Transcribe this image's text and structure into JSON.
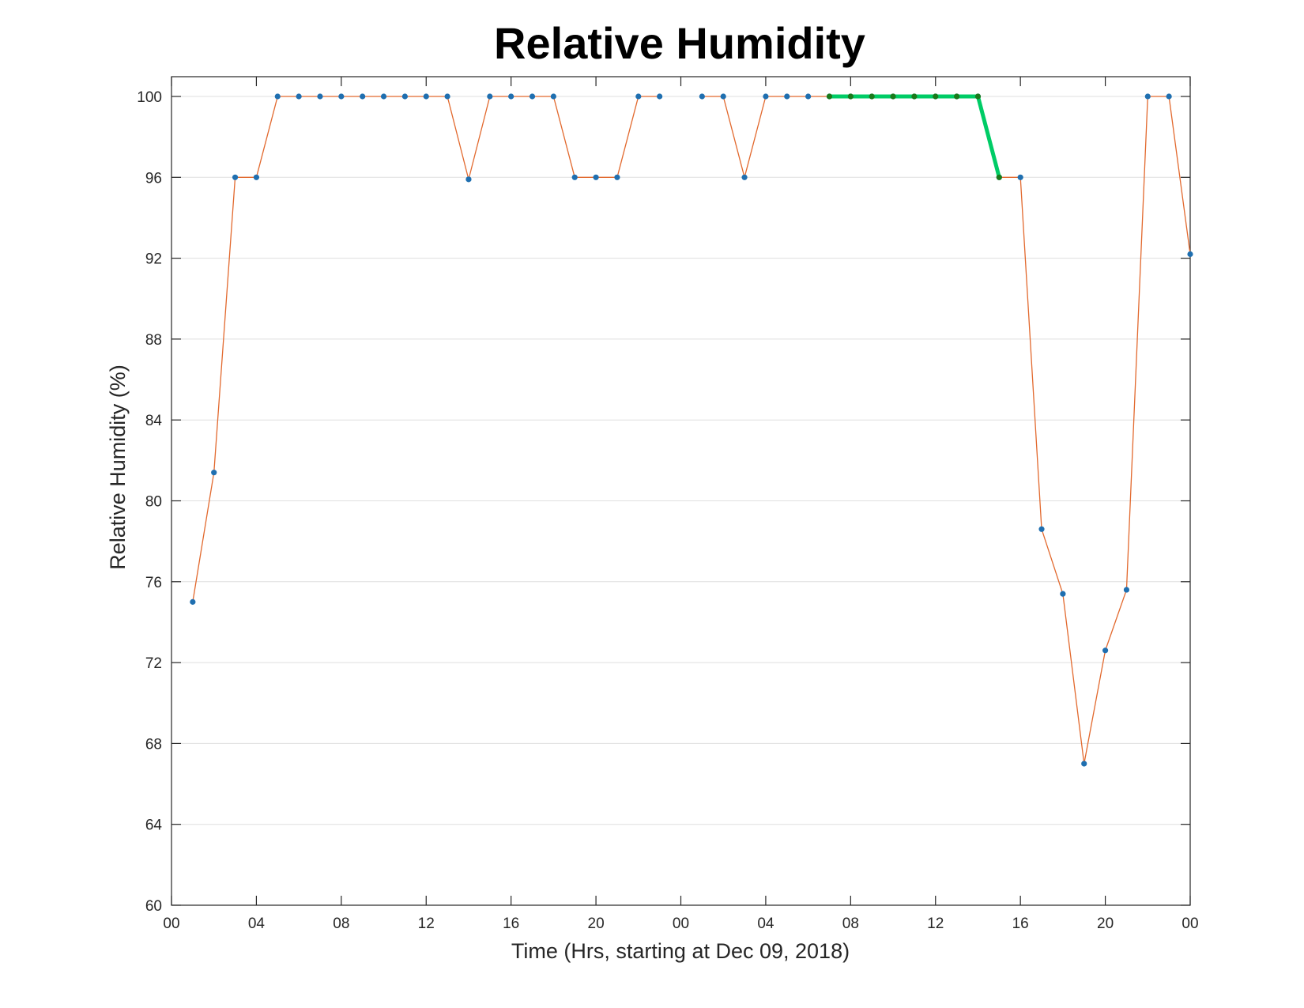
{
  "chart_data": {
    "type": "line",
    "title": "Relative Humidity",
    "xlabel": "Time (Hrs, starting at Dec 09, 2018)",
    "ylabel": "Relative Humidity (%)",
    "ylim": [
      60,
      100
    ],
    "xlim": [
      "Dec 09, 2018 00:00",
      "Dec 11, 2018 00:00"
    ],
    "x_tick_labels": [
      "00",
      "04",
      "08",
      "12",
      "16",
      "20",
      "00",
      "04",
      "08",
      "12",
      "16",
      "20",
      "00"
    ],
    "y_ticks": [
      60,
      64,
      68,
      72,
      76,
      80,
      84,
      88,
      92,
      96,
      100
    ],
    "grid": "horizontal",
    "series": [
      {
        "color": "#e2692e",
        "marker_color": "#1f6fb0",
        "x": [
          "Dec 09 01:00",
          "Dec 09 02:00",
          "Dec 09 03:00",
          "Dec 09 04:00",
          "Dec 09 05:00",
          "Dec 09 06:00",
          "Dec 09 07:00",
          "Dec 09 08:00",
          "Dec 09 09:00",
          "Dec 09 10:00",
          "Dec 09 11:00",
          "Dec 09 12:00",
          "Dec 09 13:00",
          "Dec 09 14:00",
          "Dec 09 15:00",
          "Dec 09 16:00",
          "Dec 09 17:00",
          "Dec 09 18:00",
          "Dec 09 19:00",
          "Dec 09 20:00",
          "Dec 09 21:00",
          "Dec 09 22:00",
          "Dec 09 23:00",
          "Dec 10 00:00",
          "Dec 10 01:00",
          "Dec 10 02:00",
          "Dec 10 03:00",
          "Dec 10 04:00",
          "Dec 10 05:00",
          "Dec 10 06:00",
          "Dec 10 07:00",
          "Dec 10 08:00",
          "Dec 10 09:00",
          "Dec 10 10:00",
          "Dec 10 11:00",
          "Dec 10 12:00",
          "Dec 10 13:00",
          "Dec 10 14:00",
          "Dec 10 15:00",
          "Dec 10 16:00",
          "Dec 10 17:00",
          "Dec 10 18:00",
          "Dec 10 19:00",
          "Dec 10 20:00",
          "Dec 10 21:00",
          "Dec 10 22:00",
          "Dec 10 23:00",
          "Dec 11 00:00"
        ],
        "values": [
          75,
          81.4,
          96,
          96,
          100,
          100,
          100,
          100,
          100,
          100,
          100,
          100,
          100,
          95.9,
          100,
          100,
          100,
          100,
          96,
          96,
          96,
          100,
          100,
          null,
          100,
          100,
          96,
          100,
          100,
          100,
          100,
          100,
          100,
          100,
          100,
          100,
          100,
          100,
          96,
          96,
          78.6,
          75.4,
          67,
          72.6,
          75.6,
          100,
          100,
          92.2
        ]
      },
      {
        "color": "#00cc66",
        "marker_color": "#1a7a1a",
        "x": [
          "Dec 10 07:00",
          "Dec 10 08:00",
          "Dec 10 09:00",
          "Dec 10 10:00",
          "Dec 10 11:00",
          "Dec 10 12:00",
          "Dec 10 13:00",
          "Dec 10 14:00",
          "Dec 10 15:00"
        ],
        "values": [
          100,
          100,
          100,
          100,
          100,
          100,
          100,
          100,
          96
        ]
      }
    ]
  }
}
